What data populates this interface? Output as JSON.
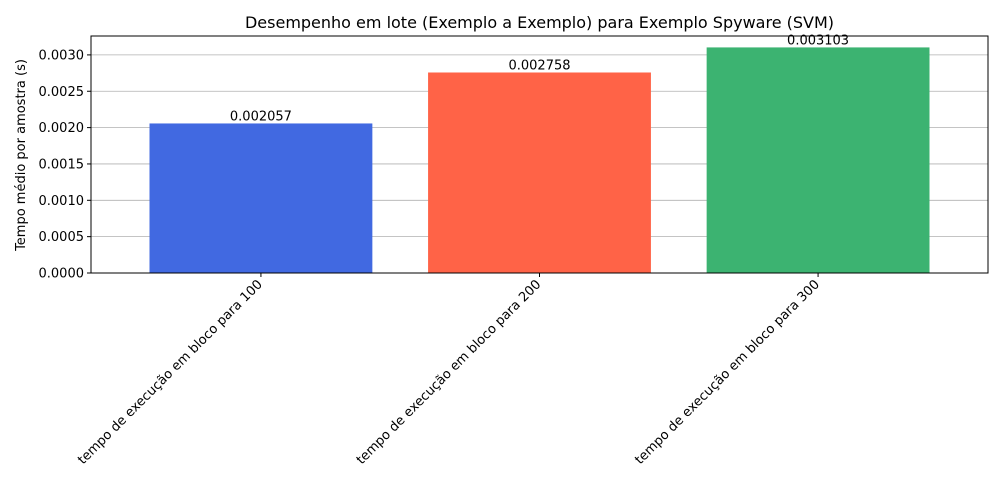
{
  "chart_data": {
    "type": "bar",
    "title": "Desempenho em lote (Exemplo a Exemplo) para Exemplo Spyware (SVM)",
    "xlabel": "",
    "ylabel": "Tempo médio por amostra (s)",
    "categories": [
      "tempo de execução em bloco para 100",
      "tempo de execução em bloco para 200",
      "tempo de execução em bloco para 300"
    ],
    "values": [
      0.002057,
      0.002758,
      0.003103
    ],
    "value_labels": [
      "0.002057",
      "0.002758",
      "0.003103"
    ],
    "colors": [
      "#4169e1",
      "#ff6347",
      "#3cb371"
    ],
    "ylim": [
      0,
      0.00326
    ],
    "yticks": [
      0.0,
      0.0005,
      0.001,
      0.0015,
      0.002,
      0.0025,
      0.003
    ],
    "ytick_labels": [
      "0.0000",
      "0.0005",
      "0.0010",
      "0.0015",
      "0.0020",
      "0.0025",
      "0.0030"
    ],
    "grid": "y-only",
    "legend": "none"
  }
}
